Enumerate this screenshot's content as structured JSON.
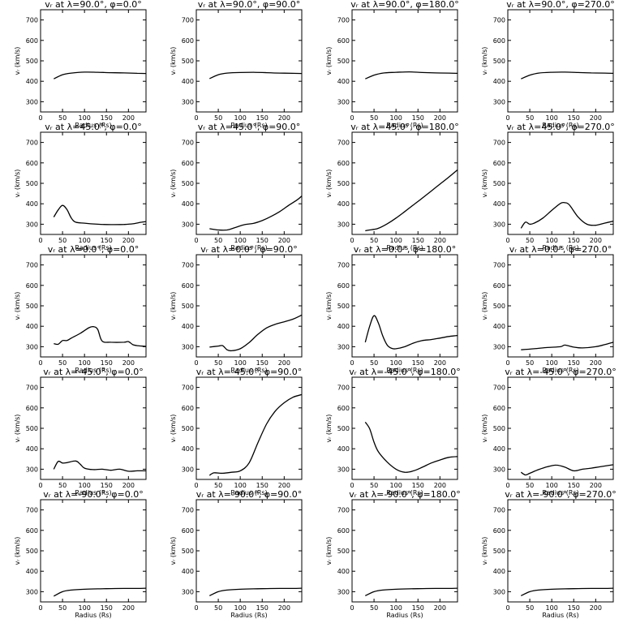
{
  "chart_data": [
    {
      "type": "line",
      "title": "vᵣ at λ=90.0°, φ=0.0°",
      "xlabel": "Radius (Rs)",
      "ylabel": "vᵣ (km/s)",
      "xlim": [
        0,
        240
      ],
      "ylim": [
        250,
        750
      ],
      "x": [
        30,
        50,
        70,
        100,
        130,
        160,
        190,
        220,
        240
      ],
      "values": [
        412,
        432,
        440,
        445,
        444,
        442,
        441,
        439,
        438
      ]
    },
    {
      "type": "line",
      "title": "vᵣ at λ=90.0°, φ=90.0°",
      "xlabel": "Radius (Rs)",
      "ylabel": "vᵣ (km/s)",
      "xlim": [
        0,
        240
      ],
      "ylim": [
        250,
        750
      ],
      "x": [
        30,
        50,
        70,
        100,
        130,
        160,
        190,
        220,
        240
      ],
      "values": [
        413,
        432,
        440,
        443,
        444,
        442,
        440,
        439,
        438
      ]
    },
    {
      "type": "line",
      "title": "vᵣ at λ=90.0°, φ=180.0°",
      "xlabel": "Radius (Rs)",
      "ylabel": "vᵣ (km/s)",
      "xlim": [
        0,
        240
      ],
      "ylim": [
        250,
        750
      ],
      "x": [
        30,
        50,
        70,
        100,
        130,
        160,
        190,
        220,
        240
      ],
      "values": [
        412,
        430,
        440,
        444,
        446,
        443,
        441,
        440,
        439
      ]
    },
    {
      "type": "line",
      "title": "vᵣ at λ=90.0°, φ=270.0°",
      "xlabel": "Radius (Rs)",
      "ylabel": "vᵣ (km/s)",
      "xlim": [
        0,
        240
      ],
      "ylim": [
        250,
        750
      ],
      "x": [
        30,
        50,
        70,
        100,
        130,
        160,
        190,
        220,
        240
      ],
      "values": [
        412,
        430,
        440,
        444,
        445,
        443,
        441,
        440,
        439
      ]
    },
    {
      "type": "line",
      "title": "vᵣ at λ=45.0°, φ=0.0°",
      "xlabel": "Radius (Rs)",
      "ylabel": "vᵣ (km/s)",
      "xlim": [
        0,
        240
      ],
      "ylim": [
        250,
        750
      ],
      "x": [
        30,
        40,
        50,
        60,
        70,
        80,
        100,
        130,
        160,
        190,
        210,
        230,
        240
      ],
      "values": [
        335,
        370,
        392,
        372,
        330,
        310,
        305,
        300,
        298,
        299,
        302,
        310,
        313
      ]
    },
    {
      "type": "line",
      "title": "vᵣ at λ=45.0°, φ=90.0°",
      "xlabel": "Radius (Rs)",
      "ylabel": "vᵣ (km/s)",
      "xlim": [
        0,
        240
      ],
      "ylim": [
        250,
        750
      ],
      "x": [
        30,
        50,
        70,
        90,
        110,
        130,
        150,
        170,
        190,
        210,
        230,
        240
      ],
      "values": [
        278,
        272,
        272,
        285,
        298,
        304,
        318,
        338,
        362,
        392,
        420,
        438
      ]
    },
    {
      "type": "line",
      "title": "vᵣ at λ=45.0°, φ=180.0°",
      "xlabel": "Radius (Rs)",
      "ylabel": "vᵣ (km/s)",
      "xlim": [
        0,
        240
      ],
      "ylim": [
        250,
        750
      ],
      "x": [
        30,
        40,
        50,
        60,
        80,
        100,
        120,
        140,
        160,
        180,
        200,
        220,
        240
      ],
      "values": [
        268,
        272,
        275,
        280,
        302,
        330,
        362,
        395,
        428,
        462,
        496,
        530,
        566
      ]
    },
    {
      "type": "line",
      "title": "vᵣ at λ=45.0°, φ=270.0°",
      "xlabel": "Radius (Rs)",
      "ylabel": "vᵣ (km/s)",
      "xlim": [
        0,
        240
      ],
      "ylim": [
        250,
        750
      ],
      "x": [
        30,
        40,
        50,
        60,
        80,
        100,
        120,
        130,
        140,
        160,
        180,
        200,
        220,
        240
      ],
      "values": [
        280,
        310,
        300,
        305,
        330,
        368,
        402,
        405,
        395,
        335,
        300,
        295,
        305,
        315
      ]
    },
    {
      "type": "line",
      "title": "vᵣ at λ=0.0°, φ=0.0°",
      "xlabel": "Radius (Rs)",
      "ylabel": "vᵣ (km/s)",
      "xlim": [
        0,
        240
      ],
      "ylim": [
        250,
        750
      ],
      "x": [
        30,
        40,
        50,
        60,
        70,
        90,
        110,
        120,
        130,
        140,
        160,
        190,
        200,
        210,
        220,
        240
      ],
      "values": [
        315,
        312,
        330,
        330,
        342,
        365,
        393,
        398,
        385,
        328,
        322,
        322,
        325,
        310,
        305,
        302
      ]
    },
    {
      "type": "line",
      "title": "vᵣ at λ=0.0°, φ=90.0°",
      "xlabel": "Radius (Rs)",
      "ylabel": "vᵣ (km/s)",
      "xlim": [
        0,
        240
      ],
      "ylim": [
        250,
        750
      ],
      "x": [
        30,
        50,
        60,
        70,
        80,
        100,
        120,
        140,
        160,
        180,
        200,
        220,
        240
      ],
      "values": [
        298,
        303,
        305,
        285,
        280,
        290,
        320,
        360,
        392,
        410,
        422,
        435,
        455
      ]
    },
    {
      "type": "line",
      "title": "vᵣ at λ=0.0°, φ=180.0°",
      "xlabel": "Radius (Rs)",
      "ylabel": "vᵣ (km/s)",
      "xlim": [
        0,
        240
      ],
      "ylim": [
        250,
        750
      ],
      "x": [
        30,
        40,
        50,
        60,
        70,
        80,
        90,
        100,
        120,
        140,
        160,
        180,
        200,
        220,
        240
      ],
      "values": [
        322,
        400,
        452,
        415,
        352,
        308,
        292,
        290,
        300,
        318,
        330,
        335,
        342,
        350,
        355
      ]
    },
    {
      "type": "line",
      "title": "vᵣ at λ=0.0°, φ=270.0°",
      "xlabel": "Radius (Rs)",
      "ylabel": "vᵣ (km/s)",
      "xlim": [
        0,
        240
      ],
      "ylim": [
        250,
        750
      ],
      "x": [
        30,
        60,
        90,
        120,
        130,
        150,
        170,
        200,
        220,
        240
      ],
      "values": [
        285,
        290,
        296,
        300,
        308,
        298,
        294,
        300,
        310,
        322
      ]
    },
    {
      "type": "line",
      "title": "vᵣ at λ=-45.0°, φ=0.0°",
      "xlabel": "Radius (Rs)",
      "ylabel": "vᵣ (km/s)",
      "xlim": [
        0,
        240
      ],
      "ylim": [
        250,
        750
      ],
      "x": [
        30,
        40,
        50,
        60,
        80,
        90,
        100,
        120,
        140,
        160,
        180,
        200,
        220,
        240
      ],
      "values": [
        300,
        338,
        330,
        332,
        340,
        325,
        305,
        298,
        300,
        295,
        300,
        290,
        292,
        292
      ]
    },
    {
      "type": "line",
      "title": "vᵣ at λ=-45.0°, φ=90.0°",
      "xlabel": "Radius (Rs)",
      "ylabel": "vᵣ (km/s)",
      "xlim": [
        0,
        240
      ],
      "ylim": [
        250,
        750
      ],
      "x": [
        30,
        40,
        60,
        80,
        100,
        120,
        140,
        160,
        180,
        200,
        220,
        240
      ],
      "values": [
        270,
        282,
        280,
        285,
        292,
        330,
        428,
        522,
        585,
        625,
        652,
        665
      ]
    },
    {
      "type": "line",
      "title": "vᵣ at λ=-45.0°, φ=180.0°",
      "xlabel": "Radius (Rs)",
      "ylabel": "vᵣ (km/s)",
      "xlim": [
        0,
        240
      ],
      "ylim": [
        250,
        750
      ],
      "x": [
        30,
        40,
        50,
        60,
        80,
        100,
        120,
        140,
        160,
        180,
        200,
        220,
        240
      ],
      "values": [
        530,
        498,
        432,
        385,
        335,
        300,
        285,
        292,
        310,
        330,
        345,
        358,
        362
      ]
    },
    {
      "type": "line",
      "title": "vᵣ at λ=-45.0°, φ=270.0°",
      "xlabel": "Radius (Rs)",
      "ylabel": "vᵣ (km/s)",
      "xlim": [
        0,
        240
      ],
      "ylim": [
        250,
        750
      ],
      "x": [
        30,
        40,
        50,
        70,
        90,
        110,
        130,
        150,
        170,
        190,
        210,
        240
      ],
      "values": [
        285,
        272,
        280,
        298,
        312,
        320,
        310,
        292,
        300,
        305,
        312,
        322
      ]
    },
    {
      "type": "line",
      "title": "vᵣ at λ=-90.0°, φ=0.0°",
      "xlabel": "Radius (Rs)",
      "ylabel": "vᵣ (km/s)",
      "xlim": [
        0,
        240
      ],
      "ylim": [
        250,
        750
      ],
      "x": [
        30,
        50,
        70,
        100,
        130,
        160,
        190,
        220,
        240
      ],
      "values": [
        278,
        300,
        308,
        312,
        314,
        315,
        316,
        316,
        317
      ]
    },
    {
      "type": "line",
      "title": "vᵣ at λ=-90.0°, φ=90.0°",
      "xlabel": "Radius (Rs)",
      "ylabel": "vᵣ (km/s)",
      "xlim": [
        0,
        240
      ],
      "ylim": [
        250,
        750
      ],
      "x": [
        30,
        50,
        70,
        100,
        130,
        160,
        190,
        220,
        240
      ],
      "values": [
        280,
        300,
        308,
        312,
        314,
        315,
        316,
        316,
        317
      ]
    },
    {
      "type": "line",
      "title": "vᵣ at λ=-90.0°, φ=180.0°",
      "xlabel": "Radius (Rs)",
      "ylabel": "vᵣ (km/s)",
      "xlim": [
        0,
        240
      ],
      "ylim": [
        250,
        750
      ],
      "x": [
        30,
        50,
        70,
        100,
        130,
        160,
        190,
        220,
        240
      ],
      "values": [
        280,
        300,
        308,
        312,
        314,
        315,
        316,
        316,
        317
      ]
    },
    {
      "type": "line",
      "title": "vᵣ at λ=-90.0°, φ=270.0°",
      "xlabel": "Radius (Rs)",
      "ylabel": "vᵣ (km/s)",
      "xlim": [
        0,
        240
      ],
      "ylim": [
        250,
        750
      ],
      "x": [
        30,
        50,
        70,
        100,
        130,
        160,
        190,
        220,
        240
      ],
      "values": [
        280,
        300,
        308,
        312,
        314,
        315,
        316,
        316,
        317
      ]
    }
  ],
  "axes": {
    "xticks": [
      0,
      50,
      100,
      150,
      200
    ],
    "yticks": [
      300,
      400,
      500,
      600,
      700
    ]
  }
}
